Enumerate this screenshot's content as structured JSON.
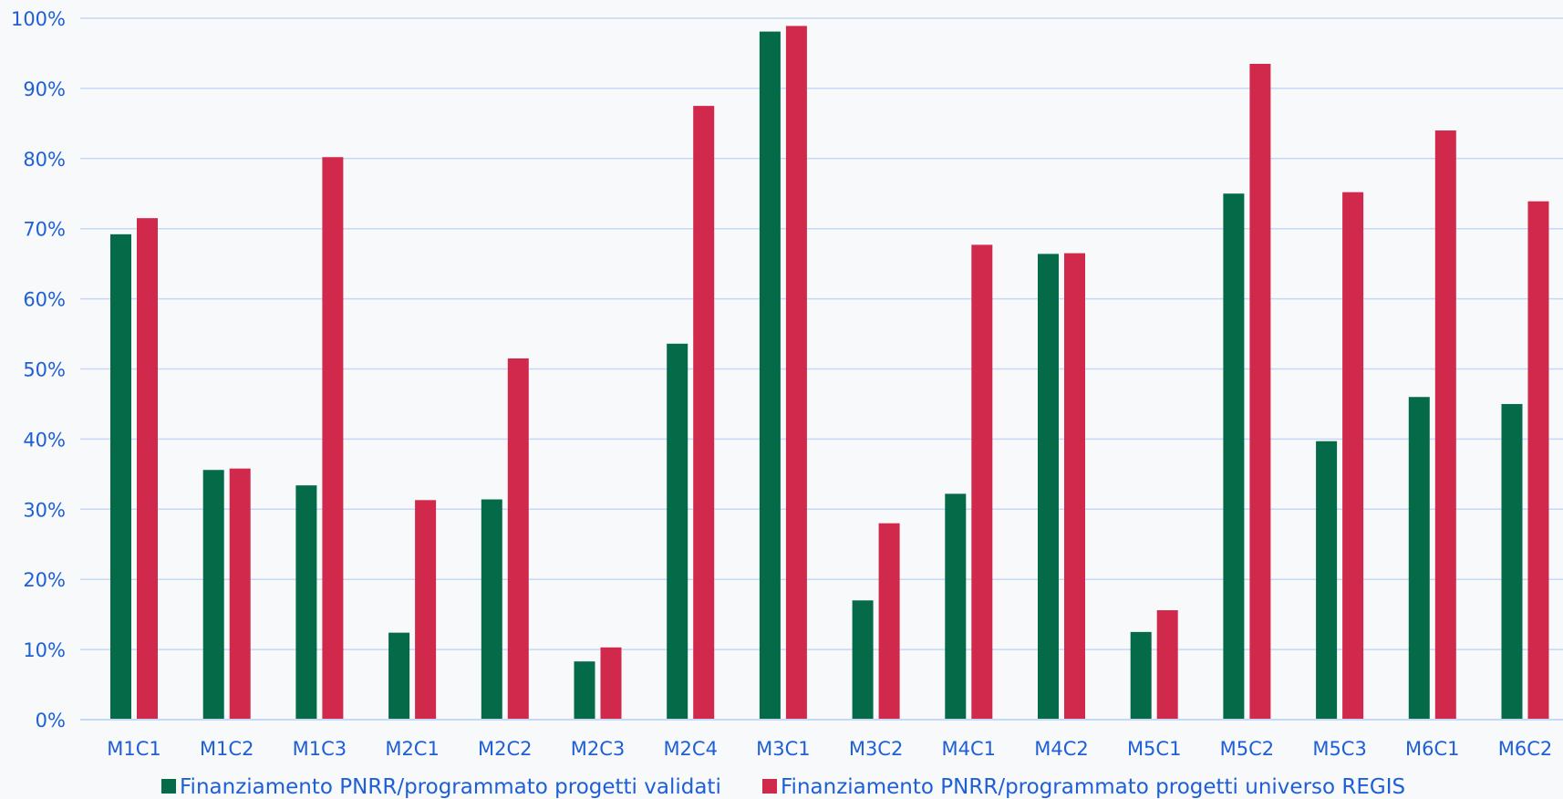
{
  "chart_data": {
    "type": "bar",
    "title": "",
    "xlabel": "",
    "ylabel": "",
    "ylim": [
      0,
      100
    ],
    "y_ticks": [
      "0%",
      "10%",
      "20%",
      "30%",
      "40%",
      "50%",
      "60%",
      "70%",
      "80%",
      "90%",
      "100%"
    ],
    "grid": true,
    "legend_position": "bottom",
    "categories": [
      "M1C1",
      "M1C2",
      "M1C3",
      "M2C1",
      "M2C2",
      "M2C3",
      "M2C4",
      "M3C1",
      "M3C2",
      "M4C1",
      "M4C2",
      "M5C1",
      "M5C2",
      "M5C3",
      "M6C1",
      "M6C2"
    ],
    "series": [
      {
        "name": "Finanziamento PNRR/programmato progetti validati",
        "color": "#046a48",
        "values": [
          69.2,
          35.6,
          33.4,
          12.4,
          31.4,
          8.3,
          53.6,
          98.1,
          17.0,
          32.2,
          66.4,
          12.5,
          75.0,
          39.7,
          46.0,
          45.0
        ]
      },
      {
        "name": "Finanziamento PNRR/programmato progetti universo REGIS",
        "color": "#d0294b",
        "values": [
          71.5,
          35.8,
          80.2,
          31.3,
          51.5,
          10.3,
          87.5,
          98.9,
          28.0,
          67.7,
          66.5,
          15.6,
          93.5,
          75.2,
          84.0,
          73.9
        ]
      }
    ],
    "colors": {
      "axis_text": "#1f5fd6",
      "grid": "#c5d8f5",
      "background": "#f8f9fb"
    }
  }
}
